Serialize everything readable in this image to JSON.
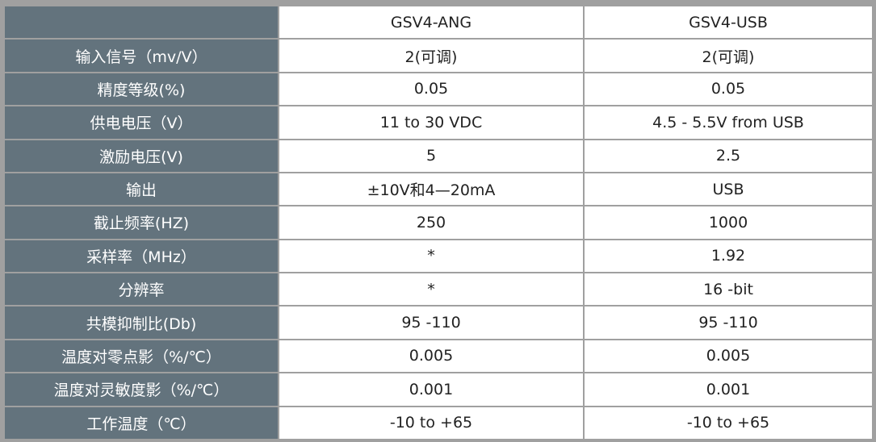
{
  "header": {
    "label": "",
    "columns": [
      "GSV4-ANG",
      "GSV4-USB"
    ]
  },
  "rows": [
    {
      "label": "输入信号（mv/V）",
      "values": [
        "2(可调)",
        "2(可调)"
      ]
    },
    {
      "label": "精度等级(%)",
      "values": [
        "0.05",
        "0.05"
      ]
    },
    {
      "label": "供电电压（V）",
      "values": [
        "11 to 30 VDC",
        "4.5 - 5.5V from USB"
      ]
    },
    {
      "label": "激励电压(V)",
      "values": [
        "5",
        "2.5"
      ]
    },
    {
      "label": "输出",
      "values": [
        "±10V和4—20mA",
        "USB"
      ]
    },
    {
      "label": "截止频率(HZ)",
      "values": [
        "250",
        "1000"
      ]
    },
    {
      "label": "采样率（MHz）",
      "values": [
        "*",
        "1.92"
      ]
    },
    {
      "label": "分辨率",
      "values": [
        "*",
        "16 -bit"
      ]
    },
    {
      "label": "共模抑制比(Db)",
      "values": [
        "95 -110",
        "95 -110"
      ]
    },
    {
      "label": "温度对零点影（%/℃）",
      "values": [
        "0.005",
        "0.005"
      ]
    },
    {
      "label": "温度对灵敏度影（%/℃）",
      "values": [
        "0.001",
        "0.001"
      ]
    },
    {
      "label": "工作温度（℃）",
      "values": [
        "-10 to +65",
        "-10 to +65"
      ]
    }
  ],
  "colors": {
    "label_bg": "#63737d",
    "border": "#a0a0a0"
  }
}
